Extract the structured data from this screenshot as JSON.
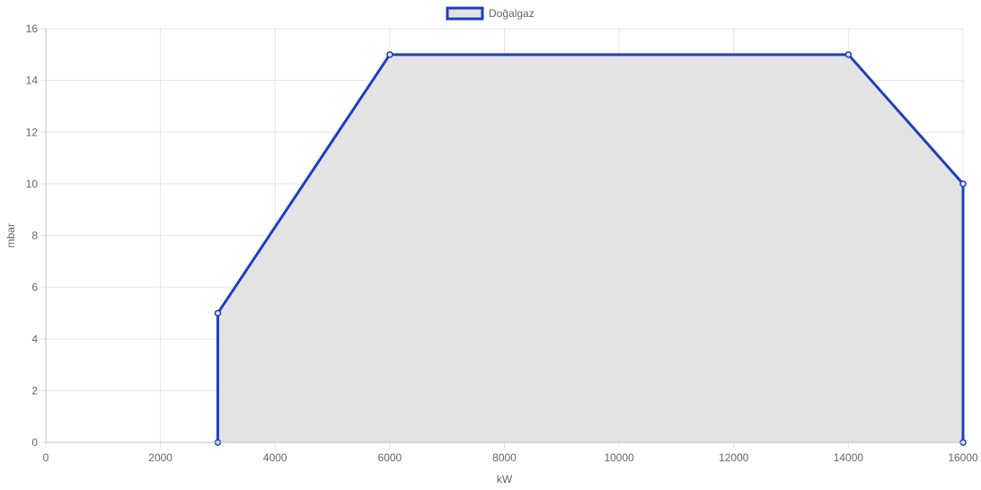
{
  "chart_data": {
    "type": "area",
    "title": "",
    "xlabel": "kW",
    "ylabel": "mbar",
    "xlim": [
      0,
      16000
    ],
    "ylim": [
      0,
      16
    ],
    "x_ticks": [
      0,
      2000,
      4000,
      6000,
      8000,
      10000,
      12000,
      14000,
      16000
    ],
    "y_ticks": [
      0,
      2,
      4,
      6,
      8,
      10,
      12,
      14,
      16
    ],
    "grid": true,
    "legend_position": "top-center",
    "series": [
      {
        "name": "Doğalgaz",
        "color": "#1e3fbf",
        "fill": "#e3e3e3",
        "points": [
          {
            "x": 3000,
            "y": 0
          },
          {
            "x": 3000,
            "y": 5
          },
          {
            "x": 6000,
            "y": 15
          },
          {
            "x": 14000,
            "y": 15
          },
          {
            "x": 16000,
            "y": 10
          },
          {
            "x": 16000,
            "y": 0
          }
        ]
      }
    ]
  }
}
